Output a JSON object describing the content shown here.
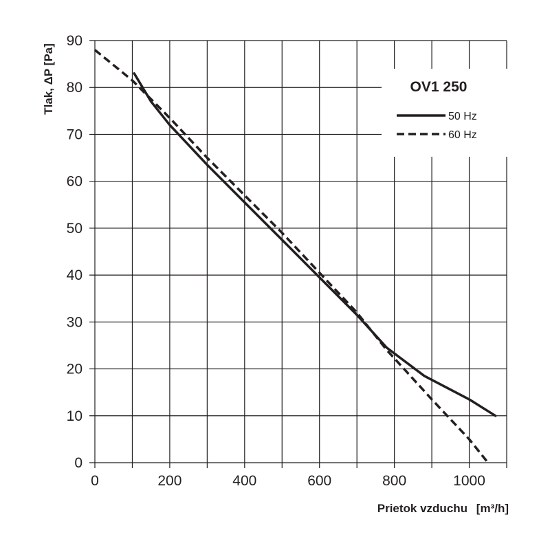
{
  "chart_data": {
    "type": "line",
    "title": "OV1 250",
    "xlabel": "Prietok vzduchu",
    "xlabel_unit": "[m³/h]",
    "ylabel": "Tlak, ΔP [Pa]",
    "xlim": [
      0,
      1100
    ],
    "ylim": [
      0,
      90
    ],
    "x_ticks": [
      0,
      200,
      400,
      600,
      800,
      1000
    ],
    "y_ticks": [
      0,
      10,
      20,
      30,
      40,
      50,
      60,
      70,
      80,
      90
    ],
    "x_grid": [
      0,
      100,
      200,
      300,
      400,
      500,
      600,
      700,
      800,
      900,
      1000,
      1100
    ],
    "y_grid": [
      0,
      10,
      20,
      30,
      40,
      50,
      60,
      70,
      80,
      90
    ],
    "grid": true,
    "legend_position": "top-right",
    "colors": {
      "line": "#231f20",
      "grid": "#231f20",
      "background": "#ffffff"
    },
    "series": [
      {
        "name": "50 Hz",
        "style": "solid",
        "x": [
          105,
          150,
          200,
          300,
          400,
          500,
          600,
          700,
          780,
          880,
          1000,
          1070
        ],
        "y": [
          83,
          77,
          72,
          63.5,
          55.5,
          47.5,
          39.5,
          31.5,
          24.5,
          18.5,
          13.5,
          10
        ]
      },
      {
        "name": "60 Hz",
        "style": "dashed",
        "x": [
          0,
          100,
          200,
          300,
          400,
          500,
          600,
          700,
          780,
          900,
          1000,
          1050
        ],
        "y": [
          88,
          81.5,
          73.5,
          65,
          57,
          49,
          40.5,
          32,
          24,
          13.5,
          5,
          0
        ]
      }
    ]
  }
}
